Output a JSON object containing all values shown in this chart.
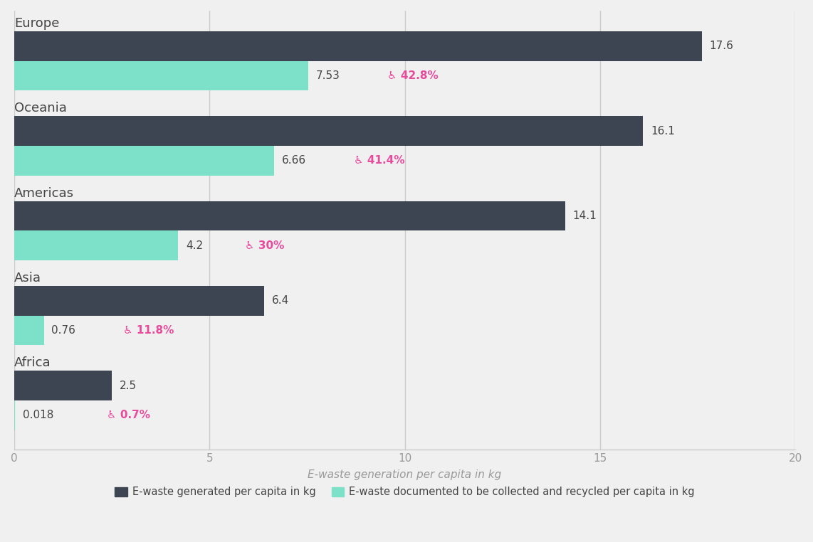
{
  "regions": [
    "Europe",
    "Oceania",
    "Americas",
    "Asia",
    "Africa"
  ],
  "generated": [
    17.6,
    16.1,
    14.1,
    6.4,
    2.5
  ],
  "recycled": [
    7.53,
    6.66,
    4.2,
    0.76,
    0.018
  ],
  "recycled_labels": [
    "7.53",
    "6.66",
    "4.2",
    "0.76",
    "0.018"
  ],
  "generated_labels": [
    "17.6",
    "16.1",
    "14.1",
    "6.4",
    "2.5"
  ],
  "pct_labels": [
    "42.8%",
    "41.4%",
    "30%",
    "11.8%",
    "0.7%"
  ],
  "bar_color_dark": "#3d4452",
  "bar_color_teal": "#7de0c8",
  "pct_color": "#e84b9c",
  "bg_color": "#f0f0f0",
  "grid_color": "#cccccc",
  "text_color": "#999999",
  "region_color": "#444444",
  "xlabel": "E-waste generation per capita in kg",
  "xlim": [
    0,
    20
  ],
  "xticks": [
    0,
    5,
    10,
    15,
    20
  ],
  "legend_dark": "E-waste generated per capita in kg",
  "legend_teal": "E-waste documented to be collected and recycled per capita in kg",
  "bar_height": 0.28,
  "title_fontsize": 13,
  "label_fontsize": 11,
  "tick_fontsize": 11,
  "legend_fontsize": 10.5
}
